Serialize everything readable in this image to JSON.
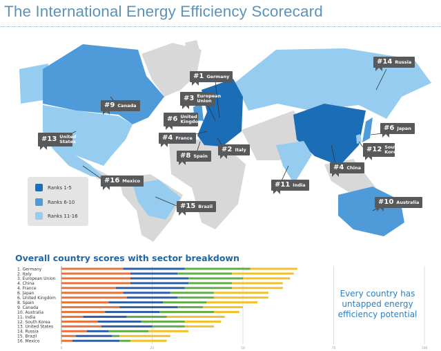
{
  "header": {
    "title": "The International Energy Efficiency Scorecard"
  },
  "colors": {
    "ranks_1_5": "#1b6db6",
    "ranks_6_10": "#4f9ad9",
    "ranks_11_16": "#95ccf0",
    "other_land": "#d8d8d8",
    "callout_bg": "#58595b"
  },
  "map": {
    "callouts": [
      {
        "rank": "#14",
        "name": "Russia"
      },
      {
        "rank": "#1",
        "name": "Germany"
      },
      {
        "rank": "#3",
        "name": "European Union"
      },
      {
        "rank": "#9",
        "name": "Canada"
      },
      {
        "rank": "#6",
        "name": "United Kingdom"
      },
      {
        "rank": "#6",
        "name": "Japan"
      },
      {
        "rank": "#13",
        "name": "United States"
      },
      {
        "rank": "#4",
        "name": "France"
      },
      {
        "rank": "#12",
        "name": "South Korea"
      },
      {
        "rank": "#8",
        "name": "Spain"
      },
      {
        "rank": "#2",
        "name": "Italy"
      },
      {
        "rank": "#4",
        "name": "China"
      },
      {
        "rank": "#16",
        "name": "Mexico"
      },
      {
        "rank": "#11",
        "name": "India"
      },
      {
        "rank": "#10",
        "name": "Australia"
      },
      {
        "rank": "#15",
        "name": "Brazil"
      }
    ],
    "legend": [
      {
        "label": "Ranks 1-5",
        "color": "#1b6db6"
      },
      {
        "label": "Ranks 6-10",
        "color": "#4f9ad9"
      },
      {
        "label": "Ranks 11-16",
        "color": "#95ccf0"
      }
    ]
  },
  "chart_data": {
    "type": "bar",
    "orientation": "horizontal",
    "stacked": true,
    "title": "Overall country scores with sector breakdown",
    "categories": [
      "1. Germany",
      "2. Italy",
      "3. European Union",
      "4. China",
      "4. France",
      "6. Japan",
      "6. United Kingdom",
      "8. Spain",
      "9. Canada",
      "10. Australia",
      "11. India",
      "12. South Korea",
      "13. United States",
      "14. Russia",
      "15. Brazil",
      "16. Mexico"
    ],
    "series": [
      {
        "color": "#e8743b",
        "values": [
          17,
          19,
          19,
          19,
          15,
          17,
          18,
          13,
          16,
          12,
          6,
          10,
          11,
          7,
          4,
          3
        ]
      },
      {
        "color": "#2f5fa6",
        "values": [
          17,
          13,
          16,
          16,
          19,
          13,
          14,
          15,
          16,
          15,
          12,
          12,
          14,
          6,
          10,
          13
        ]
      },
      {
        "color": "#62ad47",
        "values": [
          18,
          15,
          15,
          12,
          13,
          12,
          10,
          12,
          7,
          15,
          11,
          12,
          9,
          11,
          2,
          3
        ]
      },
      {
        "color": "#f2c12e",
        "values": [
          13,
          17,
          13,
          14,
          14,
          15,
          15,
          14,
          11,
          7,
          16,
          10,
          8,
          11,
          14,
          10
        ]
      }
    ],
    "xlim": [
      0,
      100
    ],
    "xticks": [
      "0",
      "25",
      "50",
      "75",
      "100"
    ],
    "grid": true,
    "annotation": "Every country has untapped energy efficiency potential"
  }
}
